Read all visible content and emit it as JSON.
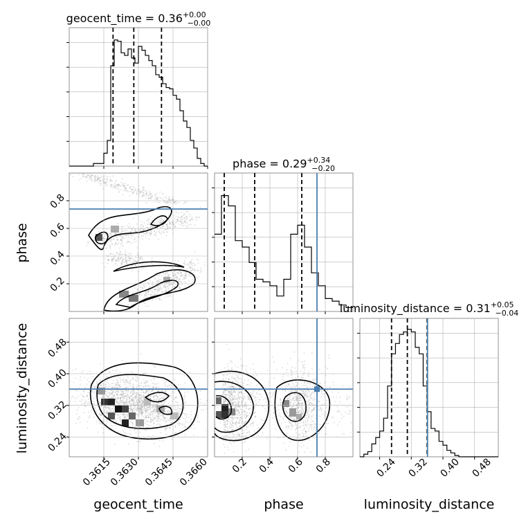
{
  "chart_data": [
    {
      "type": "histogram",
      "panel": "geocent_time-1d",
      "title": {
        "param": "geocent_time",
        "value": "0.36",
        "upper": "+0.00",
        "lower": "−0.00"
      },
      "xlim": [
        0.36,
        0.366
      ],
      "bin_edges": [
        0.36,
        0.36015,
        0.3603,
        0.36045,
        0.3606,
        0.36075,
        0.3609,
        0.36105,
        0.3612,
        0.36135,
        0.3615,
        0.36165,
        0.3618,
        0.36195,
        0.3621,
        0.36225,
        0.3624,
        0.36255,
        0.3627,
        0.36285,
        0.363,
        0.36315,
        0.3633,
        0.36345,
        0.3636,
        0.36375,
        0.3639,
        0.36405,
        0.3642,
        0.36435,
        0.3645,
        0.36465,
        0.3648,
        0.36495,
        0.3651,
        0.36525,
        0.3654,
        0.36555,
        0.3657,
        0.36585,
        0.366
      ],
      "values": [
        0,
        0,
        0,
        0,
        0,
        0,
        0,
        0.02,
        0.02,
        0.02,
        0.1,
        0.2,
        0.78,
        0.98,
        0.97,
        0.88,
        0.86,
        0.91,
        0.84,
        0.8,
        0.93,
        0.9,
        0.86,
        0.82,
        0.78,
        0.71,
        0.69,
        0.64,
        0.61,
        0.6,
        0.55,
        0.52,
        0.43,
        0.35,
        0.3,
        0.2,
        0.14,
        0.06,
        0.02,
        0
      ],
      "quantiles": [
        0.3619,
        0.3628,
        0.364
      ]
    },
    {
      "type": "histogram",
      "panel": "phase-1d",
      "title": {
        "param": "phase",
        "value": "0.29",
        "upper": "+0.34",
        "lower": "−0.20"
      },
      "xlim": [
        0.0,
        1.0
      ],
      "truth": 0.74,
      "bin_edges": [
        0,
        0.05,
        0.1,
        0.15,
        0.2,
        0.25,
        0.3,
        0.35,
        0.4,
        0.45,
        0.5,
        0.55,
        0.6,
        0.65,
        0.7,
        0.75,
        0.8,
        0.85,
        0.9,
        0.95,
        1.0
      ],
      "values": [
        0.6,
        0.9,
        0.82,
        0.55,
        0.5,
        0.38,
        0.25,
        0.23,
        0.2,
        0.12,
        0.25,
        0.6,
        0.67,
        0.5,
        0.3,
        0.2,
        0.1,
        0.08,
        0.05,
        0.03
      ],
      "quantiles": [
        0.07,
        0.29,
        0.63
      ]
    },
    {
      "type": "histogram",
      "panel": "luminosity_distance-1d",
      "title": {
        "param": "luminosity_distance",
        "value": "0.31",
        "upper": "+0.05",
        "lower": "−0.04"
      },
      "xlim": [
        0.19,
        0.54
      ],
      "truth": 0.361,
      "bin_edges": [
        0.19,
        0.2,
        0.21,
        0.22,
        0.23,
        0.24,
        0.25,
        0.26,
        0.27,
        0.28,
        0.29,
        0.3,
        0.31,
        0.32,
        0.33,
        0.34,
        0.35,
        0.36,
        0.37,
        0.38,
        0.39,
        0.4,
        0.41,
        0.42,
        0.43,
        0.44,
        0.45,
        0.46,
        0.47,
        0.48,
        0.49,
        0.5,
        0.51,
        0.52,
        0.53,
        0.54
      ],
      "values": [
        0,
        0.02,
        0.04,
        0.1,
        0.15,
        0.2,
        0.3,
        0.55,
        0.8,
        0.88,
        0.95,
        0.97,
        0.99,
        0.97,
        0.85,
        0.8,
        0.55,
        0.35,
        0.22,
        0.2,
        0.12,
        0.09,
        0.05,
        0.03,
        0.01,
        0,
        0,
        0,
        0,
        0,
        0,
        0,
        0,
        0,
        0
      ],
      "quantiles": [
        0.27,
        0.31,
        0.36
      ]
    },
    {
      "type": "contour-heatmap",
      "panel": "geocent_time-vs-phase",
      "x_param": "geocent_time",
      "y_param": "phase",
      "xlim": [
        0.36,
        0.366
      ],
      "ylim": [
        0.0,
        1.0
      ],
      "truth_y": 0.74,
      "yticks": [
        "0.2",
        "0.4",
        "0.6",
        "0.8"
      ],
      "density_modes": [
        {
          "x": 0.3617,
          "y": 0.52,
          "weight": 0.9
        },
        {
          "x": 0.3623,
          "y": 0.62,
          "weight": 0.6
        },
        {
          "x": 0.363,
          "y": 0.1,
          "weight": 0.8
        },
        {
          "x": 0.3642,
          "y": 0.22,
          "weight": 0.6
        },
        {
          "x": 0.3625,
          "y": 0.35,
          "weight": 0.3
        }
      ]
    },
    {
      "type": "contour-heatmap",
      "panel": "geocent_time-vs-luminosity_distance",
      "x_param": "geocent_time",
      "y_param": "luminosity_distance",
      "xlim": [
        0.36,
        0.366
      ],
      "ylim": [
        0.19,
        0.54
      ],
      "truth_y": 0.361,
      "yticks": [
        "0.24",
        "0.32",
        "0.40",
        "0.48"
      ],
      "density_modes": [
        {
          "x": 0.3625,
          "y": 0.32,
          "weight": 1.0
        },
        {
          "x": 0.3642,
          "y": 0.33,
          "weight": 0.5
        }
      ]
    },
    {
      "type": "contour-heatmap",
      "panel": "phase-vs-luminosity_distance",
      "x_param": "phase",
      "y_param": "luminosity_distance",
      "xlim": [
        0.0,
        1.0
      ],
      "ylim": [
        0.19,
        0.54
      ],
      "truth_x": 0.74,
      "truth_y": 0.361,
      "density_modes": [
        {
          "x": 0.06,
          "y": 0.31,
          "weight": 1.0
        },
        {
          "x": 0.62,
          "y": 0.32,
          "weight": 0.7
        }
      ]
    }
  ],
  "axes": {
    "x_labels": [
      "geocent_time",
      "phase",
      "luminosity_distance"
    ],
    "y_labels": [
      "phase",
      "luminosity_distance"
    ],
    "geocent_time_ticks": [
      "0.3615",
      "0.3630",
      "0.3645",
      "0.3660"
    ],
    "phase_ticks": [
      "0.2",
      "0.4",
      "0.6",
      "0.8"
    ],
    "luminosity_distance_ticks": [
      "0.24",
      "0.32",
      "0.40",
      "0.48"
    ]
  },
  "colors": {
    "truth": "#4a7eb0",
    "hist": "#000000",
    "grid": "#b0b0b0",
    "points": "#9a9a9a"
  }
}
